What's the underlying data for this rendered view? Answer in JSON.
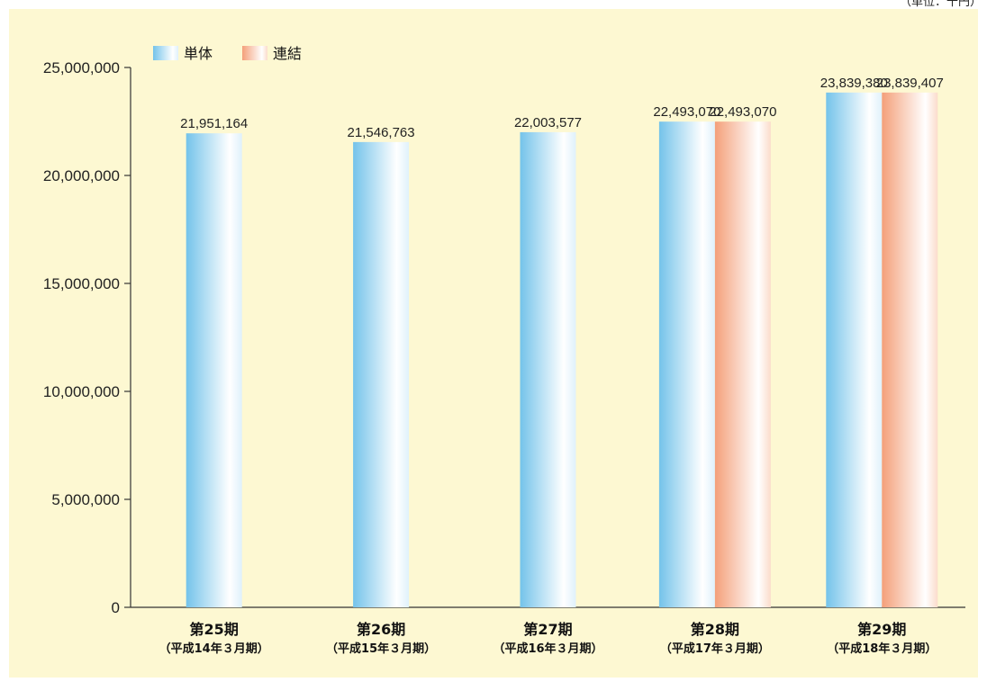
{
  "unit_label": "（単位：千円）",
  "colors": {
    "background": "#fdf8d2",
    "single_edge": "#74c3ea",
    "single_mid": "#ffffff",
    "consolidated_edge": "#f4a07a",
    "consolidated_mid": "#ffffff",
    "axis": "#333333"
  },
  "chart_data": {
    "type": "bar",
    "categories": [
      "第25期",
      "第26期",
      "第27期",
      "第28期",
      "第29期"
    ],
    "category_sublabels": [
      "（平成14年３月期）",
      "（平成15年３月期）",
      "（平成16年３月期）",
      "（平成17年３月期）",
      "（平成18年３月期）"
    ],
    "series": [
      {
        "name": "単体",
        "values": [
          21951164,
          21546763,
          22003577,
          22493070,
          23839380
        ],
        "labels": [
          "21,951,164",
          "21,546,763",
          "22,003,577",
          "22,493,070",
          "23,839,380"
        ]
      },
      {
        "name": "連結",
        "values": [
          null,
          null,
          null,
          22493070,
          23839407
        ],
        "labels": [
          "",
          "",
          "",
          "22,493,070",
          "23,839,407"
        ]
      }
    ],
    "ylim": [
      0,
      25000000
    ],
    "yticks": [
      0,
      5000000,
      10000000,
      15000000,
      20000000,
      25000000
    ],
    "ytick_labels": [
      "0",
      "5,000,000",
      "10,000,000",
      "15,000,000",
      "20,000,000",
      "25,000,000"
    ],
    "legend_position": "top-left",
    "grid": false
  }
}
